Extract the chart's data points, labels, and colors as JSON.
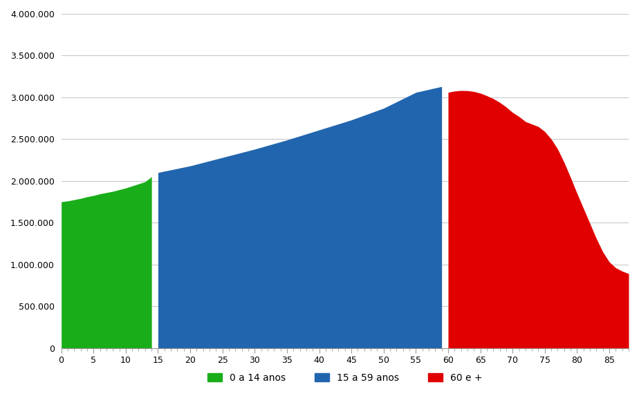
{
  "green_x": [
    0,
    1,
    2,
    3,
    4,
    5,
    6,
    7,
    8,
    9,
    10,
    11,
    12,
    13,
    14
  ],
  "green_y": [
    1750000,
    1760000,
    1775000,
    1790000,
    1810000,
    1825000,
    1845000,
    1860000,
    1875000,
    1895000,
    1915000,
    1940000,
    1965000,
    1990000,
    2050000
  ],
  "blue_x": [
    15,
    20,
    25,
    30,
    35,
    40,
    45,
    50,
    55,
    59
  ],
  "blue_y": [
    2100000,
    2180000,
    2280000,
    2380000,
    2490000,
    2610000,
    2730000,
    2870000,
    3060000,
    3130000
  ],
  "red_x": [
    60,
    61,
    62,
    63,
    64,
    65,
    66,
    67,
    68,
    69,
    70,
    71,
    72,
    73,
    74,
    75,
    76,
    77,
    78,
    79,
    80,
    81,
    82,
    83,
    84,
    85,
    86,
    87,
    88
  ],
  "red_y": [
    3060000,
    3075000,
    3082000,
    3080000,
    3070000,
    3050000,
    3020000,
    2985000,
    2940000,
    2885000,
    2820000,
    2770000,
    2710000,
    2680000,
    2650000,
    2590000,
    2500000,
    2380000,
    2220000,
    2040000,
    1850000,
    1670000,
    1490000,
    1310000,
    1150000,
    1030000,
    960000,
    920000,
    890000
  ],
  "green_color": "#1aad1a",
  "blue_color": "#2165ae",
  "red_color": "#e00000",
  "background_color": "#ffffff",
  "grid_color": "#c8c8c8",
  "ylim": [
    0,
    4000000
  ],
  "xlim": [
    0,
    88
  ],
  "yticks": [
    0,
    500000,
    1000000,
    1500000,
    2000000,
    2500000,
    3000000,
    3500000,
    4000000
  ],
  "ytick_labels": [
    "0",
    "500.000",
    "1.000.000",
    "1.500.000",
    "2.000.000",
    "2.500.000",
    "3.000.000",
    "3.500.000",
    "4.000.000"
  ],
  "xticks": [
    0,
    5,
    10,
    15,
    20,
    25,
    30,
    35,
    40,
    45,
    50,
    55,
    60,
    65,
    70,
    75,
    80,
    85
  ],
  "legend_labels": [
    "0 a 14 anos",
    "15 a 59 anos",
    "60 e +"
  ],
  "legend_colors": [
    "#1aad1a",
    "#2165ae",
    "#e00000"
  ]
}
